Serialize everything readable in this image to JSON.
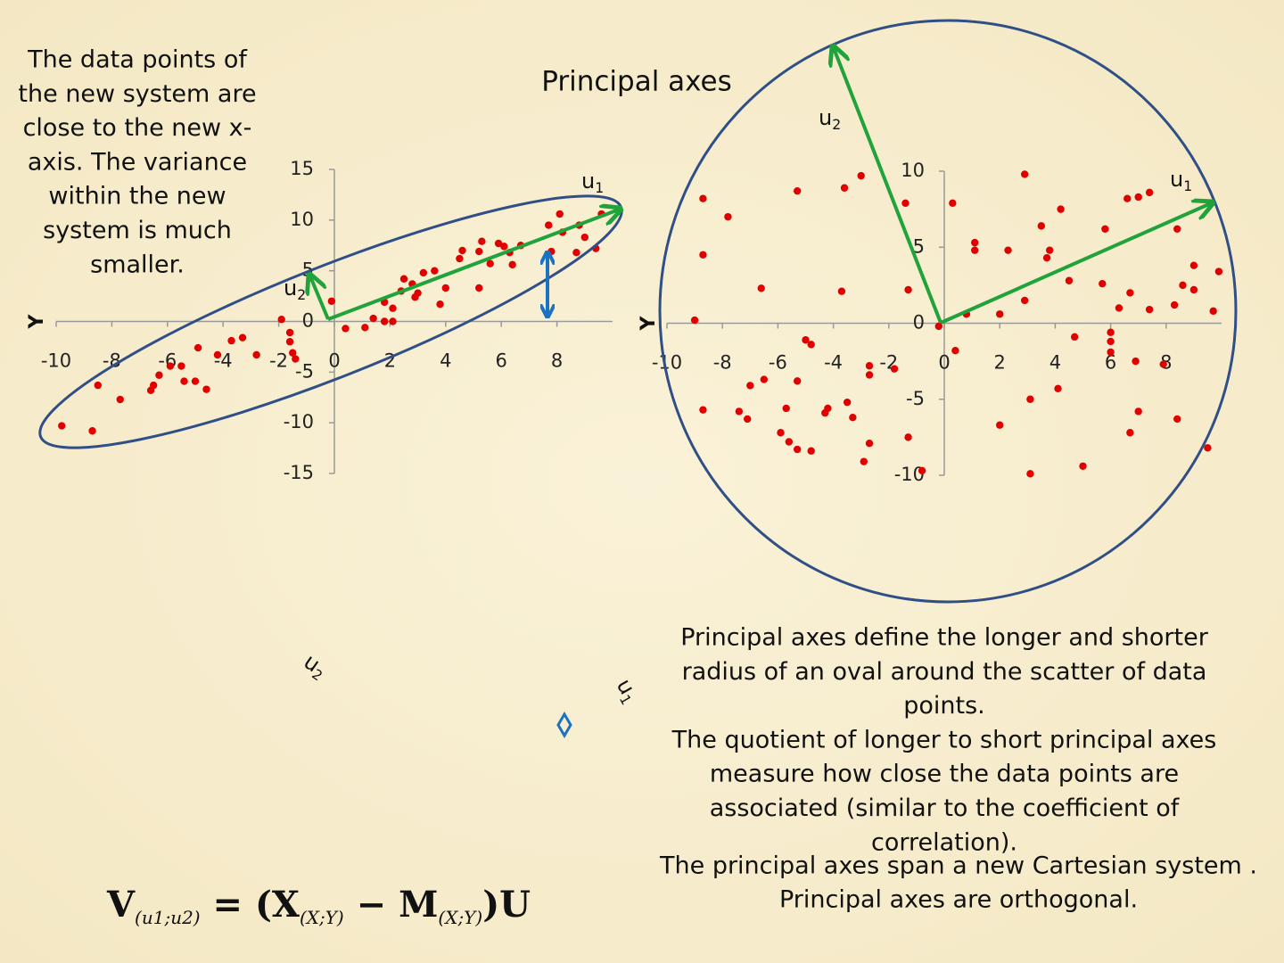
{
  "title": "Principal axes",
  "left_text": [
    "The data points of",
    "the new system are",
    "close to the new x-",
    "axis. The variance",
    "within the new",
    "system is much",
    "smaller."
  ],
  "right_text": [
    "Principal axes define the longer and shorter",
    "radius of an oval around the scatter of data",
    "points.",
    "The quotient of longer to short principal axes",
    "measure how close the data points are",
    "associated (similar to the coefficient of",
    "correlation)."
  ],
  "bottom_text": [
    "The principal axes span a new Cartesian system .",
    "Principal axes are orthogonal."
  ],
  "formula": [
    "V",
    "(u1;u2)",
    " = (",
    "X",
    "(X;Y)",
    " − ",
    "M",
    "(X;Y)",
    ")U"
  ],
  "loose_labels": {
    "u2": {
      "text": "u",
      "sub": "2"
    },
    "u1": {
      "text": "u",
      "sub": "1"
    }
  },
  "chart_data": [
    {
      "type": "scatter",
      "ylabel": "Y",
      "color": "#e00000",
      "axis_labels": {
        "u1": {
          "text": "u",
          "sub": "1"
        },
        "u2": {
          "text": "u",
          "sub": "2"
        }
      },
      "xlim": [
        -10,
        10
      ],
      "ylim": [
        -15,
        15
      ],
      "xticks": [
        -10,
        -8,
        -6,
        -4,
        -2,
        0,
        2,
        4,
        6,
        8
      ],
      "yticks": [
        15,
        10,
        5,
        0,
        -5,
        -10,
        -15
      ],
      "x": [
        -9.8,
        -8.7,
        -8.5,
        -7.7,
        -6.6,
        -6.5,
        -6.3,
        -5.9,
        -5.5,
        -5.4,
        -5.0,
        -4.6,
        -4.9,
        -4.2,
        -3.7,
        -3.3,
        -2.8,
        -1.9,
        -1.6,
        -1.6,
        -1.5,
        -1.4,
        -0.1,
        0.4,
        1.1,
        1.4,
        1.8,
        1.8,
        2.1,
        2.1,
        2.4,
        2.5,
        2.8,
        2.9,
        3.0,
        3.2,
        3.6,
        4.0,
        3.8,
        4.5,
        4.6,
        5.2,
        5.2,
        5.3,
        5.6,
        5.9,
        6.1,
        6.3,
        6.4,
        6.7,
        7.7,
        7.8,
        8.1,
        8.2,
        8.7,
        8.8,
        9.0,
        9.4,
        9.6
      ],
      "y": [
        -10.3,
        -10.8,
        -6.3,
        -7.7,
        -6.8,
        -6.3,
        -5.3,
        -4.4,
        -4.4,
        -5.9,
        -5.9,
        -6.7,
        -2.6,
        -3.3,
        -1.9,
        -1.6,
        -3.3,
        0.2,
        -1.1,
        -2.0,
        -3.1,
        -3.7,
        2.0,
        -0.7,
        -0.6,
        0.3,
        1.9,
        0,
        1.3,
        0,
        3.0,
        4.2,
        3.7,
        2.4,
        2.8,
        4.8,
        5.0,
        3.3,
        1.7,
        6.2,
        7.0,
        3.3,
        6.9,
        7.9,
        5.7,
        7.7,
        7.4,
        6.8,
        5.6,
        7.5,
        9.5,
        6.9,
        10.6,
        8.8,
        6.8,
        9.5,
        8.3,
        7.2,
        10.6
      ]
    },
    {
      "type": "scatter",
      "ylabel": "Y",
      "color": "#e00000",
      "axis_labels": {
        "u1": {
          "text": "u",
          "sub": "1"
        },
        "u2": {
          "text": "u",
          "sub": "2"
        }
      },
      "xlim": [
        -10,
        10
      ],
      "ylim": [
        -10,
        10
      ],
      "xticks": [
        -10,
        -8,
        -6,
        -4,
        -2,
        0,
        2,
        4,
        6,
        8
      ],
      "yticks": [
        10,
        5,
        0,
        -5,
        -10
      ],
      "x": [
        -9.0,
        -8.7,
        -8.7,
        -8.7,
        -7.8,
        -7.4,
        -7.1,
        -7.0,
        -6.6,
        -6.5,
        -5.9,
        -5.6,
        -5.7,
        -5.3,
        -5.3,
        -5.3,
        -5.0,
        -4.8,
        -4.8,
        -4.3,
        -4.2,
        -3.7,
        -3.6,
        -3.5,
        -3.3,
        -3.0,
        -2.9,
        -2.7,
        -2.7,
        -2.7,
        -1.8,
        -1.4,
        -1.3,
        -1.3,
        -0.8,
        -0.2,
        0.3,
        0.4,
        0.8,
        1.1,
        1.1,
        2.0,
        2.0,
        2.3,
        2.9,
        2.9,
        3.1,
        3.1,
        3.5,
        3.7,
        3.8,
        4.1,
        4.2,
        4.5,
        4.7,
        5.0,
        5.7,
        5.8,
        6.0,
        6.0,
        6.0,
        6.3,
        6.7,
        6.7,
        6.6,
        7.0,
        7.0,
        6.9,
        7.4,
        7.4,
        7.9,
        8.3,
        8.4,
        8.4,
        8.6,
        9.0,
        9.0,
        9.5,
        9.7,
        9.9
      ],
      "y": [
        0.2,
        8.2,
        4.5,
        -5.7,
        7.0,
        -5.8,
        -6.3,
        -4.1,
        2.3,
        -3.7,
        -7.2,
        -7.8,
        -5.6,
        -3.8,
        8.7,
        -8.3,
        -1.1,
        -1.4,
        -8.4,
        -5.9,
        -5.6,
        2.1,
        8.9,
        -5.2,
        -6.2,
        9.7,
        -9.1,
        -7.9,
        -2.8,
        -3.4,
        -3.0,
        7.9,
        2.2,
        -7.5,
        -9.7,
        -0.2,
        7.9,
        -1.8,
        0.6,
        5.3,
        4.8,
        0.6,
        -6.7,
        4.8,
        1.5,
        9.8,
        -5.0,
        -9.9,
        6.4,
        4.3,
        4.8,
        -4.3,
        7.5,
        2.8,
        -0.9,
        -9.4,
        2.6,
        6.2,
        -0.6,
        -1.2,
        -1.9,
        1.0,
        2.0,
        -7.2,
        8.2,
        8.3,
        -5.8,
        -2.5,
        8.6,
        0.9,
        -2.7,
        1.2,
        6.2,
        -6.3,
        2.5,
        3.8,
        2.2,
        -8.2,
        0.8,
        3.4
      ]
    }
  ]
}
